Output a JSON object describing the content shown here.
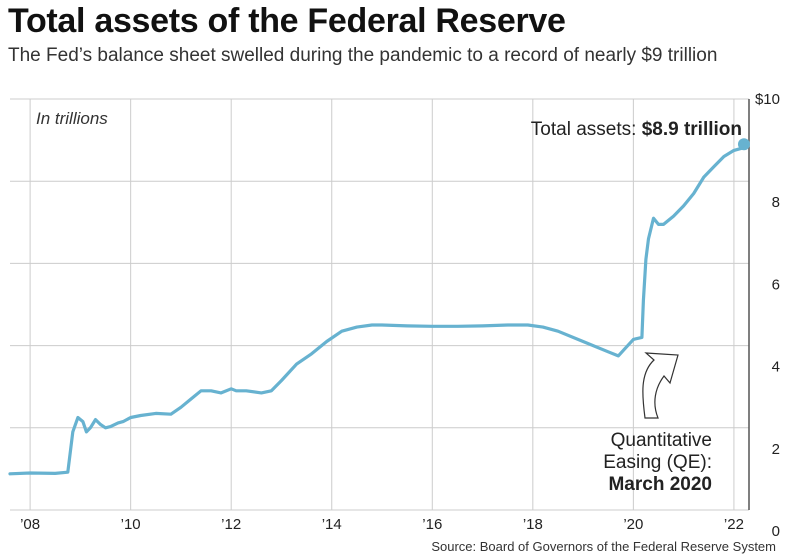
{
  "header": {
    "title": "Total assets of the Federal Reserve",
    "subtitle": "The Fed’s balance sheet swelled during the pandemic to a record of nearly $9 trillion"
  },
  "footer": {
    "source": "Source: Board of Governors of the Federal Reserve System"
  },
  "colors": {
    "line": "#67b2d0",
    "grid": "#cccccc",
    "axis": "#555555"
  },
  "chart_data": {
    "type": "line",
    "title": "Total assets of the Federal Reserve",
    "subtitle": "The Fed’s balance sheet swelled during the pandemic to a record of nearly $9 trillion",
    "units_note": "In trillions",
    "xlabel": "",
    "ylabel": "",
    "xlim": [
      2007.6,
      2022.3
    ],
    "ylim": [
      0,
      10
    ],
    "x_tick_labels": [
      "’08",
      "’10",
      "’12",
      "’14",
      "’16",
      "’18",
      "’20",
      "’22"
    ],
    "x_tick_values": [
      2008,
      2010,
      2012,
      2014,
      2016,
      2018,
      2020,
      2022
    ],
    "y_tick_labels": [
      "0",
      "2",
      "4",
      "6",
      "8",
      "$10"
    ],
    "y_tick_values": [
      0,
      2,
      4,
      6,
      8,
      10
    ],
    "y_axis_side": "right",
    "grid": true,
    "series": [
      {
        "x": [
          2007.6,
          2008.0,
          2008.5,
          2008.75,
          2008.85,
          2008.95,
          2009.05,
          2009.12,
          2009.2,
          2009.3,
          2009.4,
          2009.5,
          2009.6,
          2009.75,
          2009.85,
          2010.0,
          2010.2,
          2010.5,
          2010.8,
          2011.0,
          2011.2,
          2011.4,
          2011.6,
          2011.8,
          2012.0,
          2012.1,
          2012.3,
          2012.6,
          2012.8,
          2013.0,
          2013.3,
          2013.6,
          2013.9,
          2014.2,
          2014.5,
          2014.8,
          2015.0,
          2015.5,
          2016.0,
          2016.5,
          2017.0,
          2017.5,
          2017.9,
          2018.2,
          2018.5,
          2019.0,
          2019.5,
          2019.7,
          2019.85,
          2020.0,
          2020.17,
          2020.2,
          2020.25,
          2020.3,
          2020.4,
          2020.5,
          2020.6,
          2020.8,
          2021.0,
          2021.2,
          2021.4,
          2021.6,
          2021.8,
          2022.0,
          2022.15,
          2022.2
        ],
        "values": [
          0.88,
          0.9,
          0.89,
          0.92,
          1.9,
          2.25,
          2.15,
          1.9,
          2.0,
          2.2,
          2.08,
          2.0,
          2.03,
          2.12,
          2.15,
          2.25,
          2.3,
          2.35,
          2.33,
          2.5,
          2.7,
          2.9,
          2.9,
          2.85,
          2.95,
          2.9,
          2.9,
          2.85,
          2.9,
          3.15,
          3.55,
          3.8,
          4.1,
          4.35,
          4.45,
          4.5,
          4.5,
          4.48,
          4.47,
          4.47,
          4.48,
          4.5,
          4.5,
          4.45,
          4.35,
          4.1,
          3.85,
          3.75,
          3.95,
          4.15,
          4.2,
          5.1,
          6.1,
          6.6,
          7.1,
          6.95,
          6.95,
          7.15,
          7.4,
          7.7,
          8.1,
          8.35,
          8.6,
          8.75,
          8.8,
          8.9
        ]
      }
    ],
    "annotations": {
      "end_label_prefix": "Total assets: ",
      "end_label_value": "$8.9 trillion",
      "qe_line1": "Quantitative",
      "qe_line2": "Easing (QE):",
      "qe_line3": "March 2020"
    }
  }
}
